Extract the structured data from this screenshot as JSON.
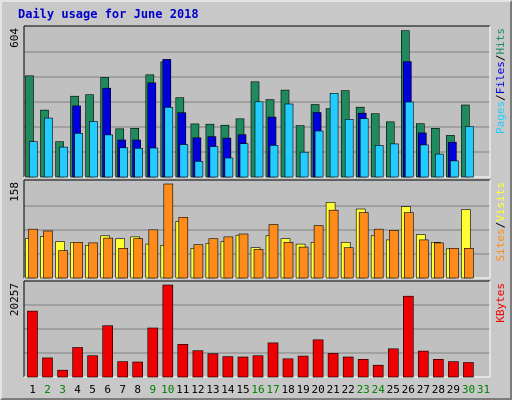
{
  "chart_data": {
    "type": "bar",
    "title": "Daily usage for June 2018",
    "colors": {
      "hits": "#1e8a5e",
      "files": "#0000dd",
      "pages": "#22ccff",
      "visits": "#ffff33",
      "sites": "#ff8c1a",
      "kbytes": "#ee0000",
      "title": "#0000cc",
      "weekend_day": "#008000",
      "weekday_day": "#000000",
      "panel": "#c0c0c0"
    },
    "days": [
      "1",
      "2",
      "3",
      "4",
      "5",
      "6",
      "7",
      "8",
      "9",
      "10",
      "11",
      "12",
      "13",
      "14",
      "15",
      "16",
      "17",
      "18",
      "19",
      "20",
      "21",
      "22",
      "23",
      "24",
      "25",
      "26",
      "27",
      "28",
      "29",
      "30",
      "31"
    ],
    "weekend_days": [
      "2",
      "3",
      "9",
      "10",
      "16",
      "17",
      "23",
      "24",
      "30",
      "31"
    ],
    "panels": [
      {
        "id": "hits-files-pages",
        "ymax_label": "604",
        "ymax": 604,
        "legend": [
          {
            "text": "Pages",
            "color": "#22ccff"
          },
          {
            "text": "/",
            "color": "#000000"
          },
          {
            "text": "Files",
            "color": "#0000dd"
          },
          {
            "text": "/",
            "color": "#000000"
          },
          {
            "text": "Hits",
            "color": "#1e8a5e"
          }
        ],
        "series": [
          {
            "name": "Hits",
            "values": [
              416,
              275,
              145,
              332,
              338,
              409,
              198,
              200,
              420,
              473,
              326,
              218,
              217,
              213,
              239,
              391,
              318,
              357,
              211,
              298,
              281,
              355,
              287,
              260,
              227,
              601,
              219,
              200,
              171,
              296,
              0
            ]
          },
          {
            "name": "Files",
            "values": [
              0,
              0,
              0,
              292,
              0,
              365,
              152,
              152,
              387,
              483,
              264,
              161,
              166,
              160,
              174,
              0,
              246,
              0,
              0,
              265,
              0,
              0,
              262,
              0,
              0,
              474,
              181,
              0,
              143,
              0,
              0
            ]
          },
          {
            "name": "Pages",
            "values": [
              145,
              242,
              123,
              179,
              228,
              173,
              120,
              118,
              119,
              286,
              133,
              64,
              125,
              78,
              137,
              309,
              130,
              300,
              102,
              189,
              344,
              237,
              240,
              130,
              136,
              308,
              132,
              94,
              66,
              207,
              0
            ]
          }
        ]
      },
      {
        "id": "visits-sites",
        "ymax_label": "158",
        "ymax": 158,
        "legend": [
          {
            "text": "Sites",
            "color": "#ff8c1a"
          },
          {
            "text": "/",
            "color": "#000000"
          },
          {
            "text": "Visits",
            "color": "#ffff33"
          }
        ],
        "series": [
          {
            "name": "Visits",
            "values": [
              66,
              70,
              61,
              60,
              55,
              71,
              66,
              69,
              57,
              55,
              95,
              50,
              58,
              61,
              72,
              51,
              71,
              66,
              57,
              60,
              127,
              60,
              116,
              71,
              64,
              120,
              73,
              60,
              49,
              115,
              0
            ]
          },
          {
            "name": "Sites",
            "values": [
              82,
              79,
              46,
              60,
              59,
              67,
              50,
              66,
              81,
              158,
              102,
              56,
              66,
              69,
              74,
              48,
              90,
              60,
              52,
              88,
              114,
              51,
              110,
              82,
              80,
              110,
              64,
              59,
              50,
              50,
              0
            ]
          }
        ]
      },
      {
        "id": "kbytes",
        "ymax_label": "20257",
        "ymax": 20257,
        "legend": [
          {
            "text": "KBytes",
            "color": "#ee0000"
          }
        ],
        "series": [
          {
            "name": "KBytes",
            "values": [
              14500,
              4200,
              1500,
              6500,
              4700,
              11300,
              3400,
              3300,
              10800,
              20257,
              7200,
              5800,
              5100,
              4500,
              4400,
              4700,
              7500,
              4000,
              4600,
              8200,
              5200,
              4400,
              3900,
              2600,
              6200,
              17800,
              5700,
              3900,
              3400,
              3200,
              0
            ]
          }
        ]
      }
    ]
  }
}
